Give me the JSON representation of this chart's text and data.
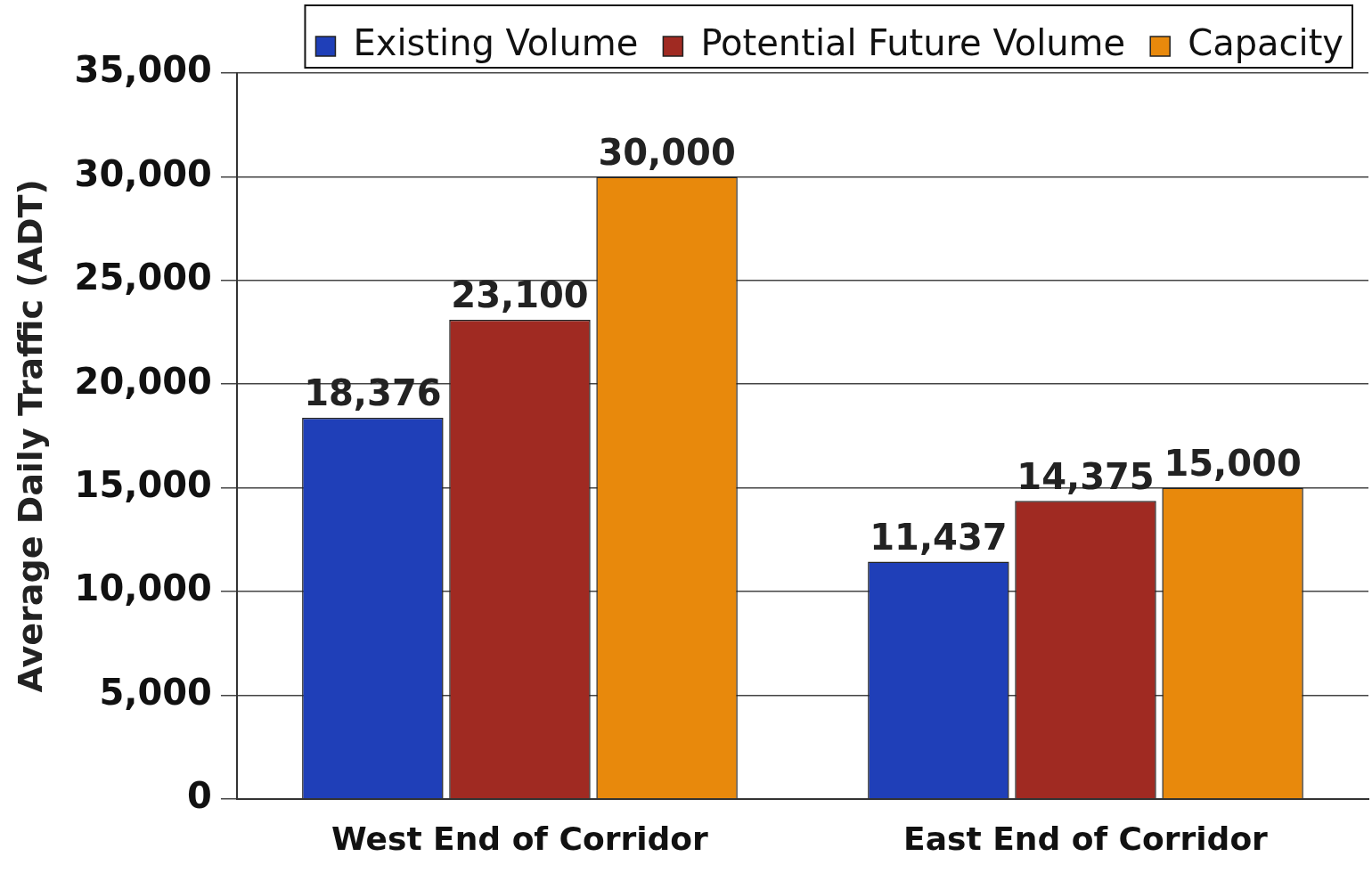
{
  "chart_data": {
    "type": "bar",
    "ylabel": "Average Daily Traffic (ADT)",
    "categories": [
      "West End of Corridor",
      "East End of Corridor"
    ],
    "series": [
      {
        "name": "Existing Volume",
        "color": "#1f3fb8",
        "values": [
          18376,
          11437
        ],
        "value_labels": [
          "18,376",
          "11,437"
        ]
      },
      {
        "name": "Potential Future Volume",
        "color": "#a02a22",
        "values": [
          23100,
          14375
        ],
        "value_labels": [
          "23,100",
          "14,375"
        ]
      },
      {
        "name": "Capacity",
        "color": "#e8890c",
        "values": [
          30000,
          15000
        ],
        "value_labels": [
          "30,000",
          "15,000"
        ]
      }
    ],
    "ylim": [
      0,
      35000
    ],
    "yticks": [
      {
        "value": 0,
        "label": "0"
      },
      {
        "value": 5000,
        "label": "5,000"
      },
      {
        "value": 10000,
        "label": "10,000"
      },
      {
        "value": 15000,
        "label": "15,000"
      },
      {
        "value": 20000,
        "label": "20,000"
      },
      {
        "value": 25000,
        "label": "25,000"
      },
      {
        "value": 30000,
        "label": "30,000"
      },
      {
        "value": 35000,
        "label": "35,000"
      }
    ],
    "grid": "y",
    "legend": "top right"
  }
}
